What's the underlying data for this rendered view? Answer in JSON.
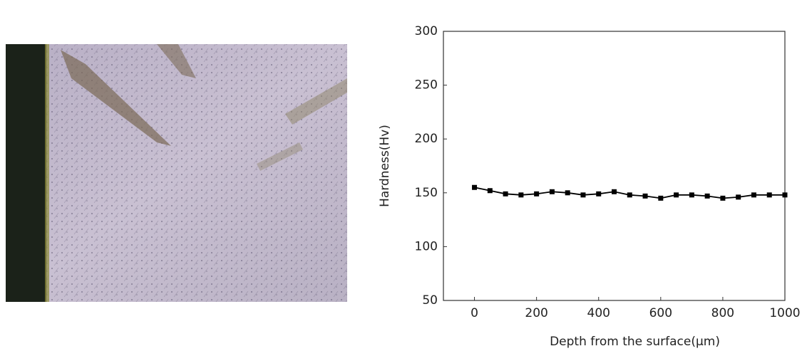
{
  "chart_data": {
    "type": "line",
    "x_label": "Depth from the surface(μm)",
    "y_label": "Hardness(Hv)",
    "x": [
      0,
      50,
      100,
      150,
      200,
      250,
      300,
      350,
      400,
      450,
      500,
      550,
      600,
      650,
      700,
      750,
      800,
      850,
      900,
      950,
      1000
    ],
    "values": [
      155,
      152,
      149,
      148,
      149,
      151,
      150,
      148,
      149,
      151,
      148,
      147,
      145,
      148,
      148,
      147,
      145,
      146,
      148,
      148,
      148
    ],
    "color": "#000000",
    "xlim": [
      -100,
      1000
    ],
    "xticks": [
      0,
      200,
      400,
      600,
      800,
      1000
    ],
    "ylim": [
      50,
      300
    ],
    "yticks": [
      50,
      100,
      150,
      200,
      250,
      300
    ]
  }
}
